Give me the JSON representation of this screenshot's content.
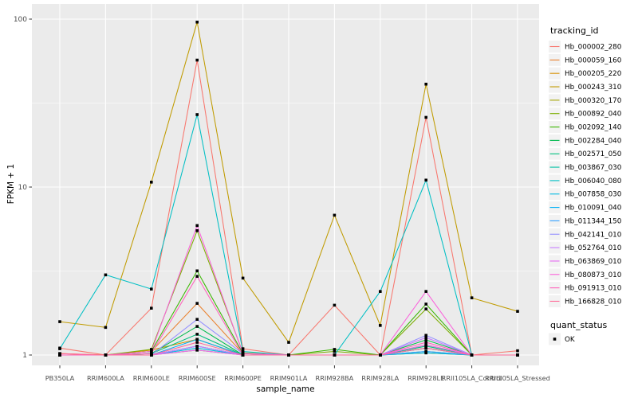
{
  "chart_data": {
    "type": "line",
    "title": "",
    "xlabel": "sample_name",
    "ylabel": "FPKM + 1",
    "y_scale": "log10",
    "y_ticks": [
      1,
      10,
      100
    ],
    "y_minor_ticks": [
      3.162,
      31.62
    ],
    "ylim": [
      0.87,
      115
    ],
    "grid": "on",
    "legend_position": "right",
    "categories": [
      "PB350LA",
      "RRIM600LA",
      "RRIM600LE",
      "RRIM600SE",
      "RRIM600PE",
      "RRIM901LA",
      "RRIM928BA",
      "RRIM928LA",
      "RRIM928LE",
      "RRII105LA_Control",
      "RRII105LA_Stressed"
    ],
    "series": [
      {
        "name": "Hb_000002_280",
        "color": "#F8766D",
        "values": [
          1.1,
          1.0,
          1.9,
          57,
          1.09,
          1.0,
          1.98,
          1.0,
          26,
          1.0,
          1.06
        ]
      },
      {
        "name": "Hb_000059_160",
        "color": "#EA8331",
        "values": [
          1.0,
          1.0,
          1.05,
          2.03,
          1.02,
          1.0,
          1.0,
          1.0,
          1.15,
          1.0,
          1.0
        ]
      },
      {
        "name": "Hb_000205_220",
        "color": "#D89000",
        "values": [
          1.02,
          1.0,
          1.07,
          1.24,
          1.0,
          1.0,
          1.0,
          1.0,
          1.1,
          1.0,
          1.0
        ]
      },
      {
        "name": "Hb_000243_310",
        "color": "#C09B00",
        "values": [
          1.58,
          1.46,
          10.7,
          96,
          2.87,
          1.19,
          6.8,
          1.5,
          41,
          2.19,
          1.82
        ]
      },
      {
        "name": "Hb_000320_170",
        "color": "#A3A500",
        "values": [
          1.0,
          1.0,
          1.0,
          1.07,
          1.0,
          1.0,
          1.0,
          1.0,
          1.03,
          1.0,
          1.0
        ]
      },
      {
        "name": "Hb_000892_040",
        "color": "#7CAE00",
        "values": [
          1.0,
          1.0,
          1.08,
          5.5,
          1.03,
          1.0,
          1.05,
          1.0,
          1.88,
          1.0,
          1.0
        ]
      },
      {
        "name": "Hb_002092_140",
        "color": "#39B600",
        "values": [
          1.0,
          1.0,
          1.05,
          3.17,
          1.02,
          1.0,
          1.08,
          1.0,
          2.01,
          1.0,
          1.0
        ]
      },
      {
        "name": "Hb_002284_040",
        "color": "#00BB4E",
        "values": [
          1.0,
          1.0,
          1.02,
          1.48,
          1.0,
          1.0,
          1.0,
          1.0,
          1.23,
          1.0,
          1.0
        ]
      },
      {
        "name": "Hb_002571_050",
        "color": "#00BF7D",
        "values": [
          1.0,
          1.0,
          1.02,
          1.33,
          1.0,
          1.0,
          1.0,
          1.0,
          1.13,
          1.0,
          1.0
        ]
      },
      {
        "name": "Hb_003867_030",
        "color": "#00C1A3",
        "values": [
          1.0,
          1.0,
          1.0,
          1.13,
          1.0,
          1.0,
          1.0,
          1.0,
          1.05,
          1.0,
          1.0
        ]
      },
      {
        "name": "Hb_006040_080",
        "color": "#00BFC4",
        "values": [
          1.09,
          3.0,
          2.47,
          27,
          1.05,
          1.0,
          1.0,
          2.39,
          11,
          1.0,
          1.0
        ]
      },
      {
        "name": "Hb_007858_030",
        "color": "#00BAE0",
        "values": [
          1.0,
          1.0,
          1.0,
          1.1,
          1.0,
          1.0,
          1.0,
          1.0,
          1.03,
          1.0,
          1.0
        ]
      },
      {
        "name": "Hb_010091_040",
        "color": "#00B0F6",
        "values": [
          1.0,
          1.0,
          1.0,
          1.24,
          1.0,
          1.0,
          1.0,
          1.0,
          1.1,
          1.0,
          1.0
        ]
      },
      {
        "name": "Hb_011344_150",
        "color": "#35A2FF",
        "values": [
          1.0,
          1.0,
          1.0,
          1.13,
          1.0,
          1.0,
          1.0,
          1.0,
          1.05,
          1.0,
          1.0
        ]
      },
      {
        "name": "Hb_042141_010",
        "color": "#9590FF",
        "values": [
          1.0,
          1.0,
          1.0,
          1.63,
          1.02,
          1.0,
          1.0,
          1.0,
          1.31,
          1.0,
          1.0
        ]
      },
      {
        "name": "Hb_052764_010",
        "color": "#C77CFF",
        "values": [
          1.0,
          1.0,
          1.0,
          1.13,
          1.0,
          1.0,
          1.0,
          1.0,
          1.27,
          1.0,
          1.0
        ]
      },
      {
        "name": "Hb_063869_010",
        "color": "#E76BF3",
        "values": [
          1.0,
          1.0,
          1.0,
          1.07,
          1.0,
          1.0,
          1.0,
          1.0,
          1.15,
          1.0,
          1.0
        ]
      },
      {
        "name": "Hb_080873_010",
        "color": "#FA62DB",
        "values": [
          1.0,
          1.0,
          1.05,
          5.9,
          1.02,
          1.0,
          1.0,
          1.0,
          2.39,
          1.0,
          1.0
        ]
      },
      {
        "name": "Hb_091913_010",
        "color": "#FF62BC",
        "values": [
          1.0,
          1.0,
          1.02,
          2.94,
          1.0,
          1.0,
          1.0,
          1.0,
          1.19,
          1.0,
          1.0
        ]
      },
      {
        "name": "Hb_166828_010",
        "color": "#FF6A98",
        "values": [
          1.02,
          1.0,
          1.0,
          1.19,
          1.0,
          1.0,
          1.0,
          1.0,
          1.1,
          1.0,
          1.0
        ]
      }
    ],
    "point": {
      "shape": "square",
      "color": "#000000"
    },
    "legends": {
      "tracking": {
        "title": "tracking_id"
      },
      "quant": {
        "title": "quant_status",
        "items": [
          "OK"
        ]
      }
    }
  },
  "theme": {
    "figure_bg": "#FFFFFF",
    "panel_bg": "#EBEBEB",
    "grid_color": "#FFFFFF",
    "tick_text_color": "#4D4D4D",
    "tick_mark_color": "#333333",
    "text_color": "#000000",
    "legend_key_bg": "#F2F2F2",
    "point_color": "#000000"
  }
}
